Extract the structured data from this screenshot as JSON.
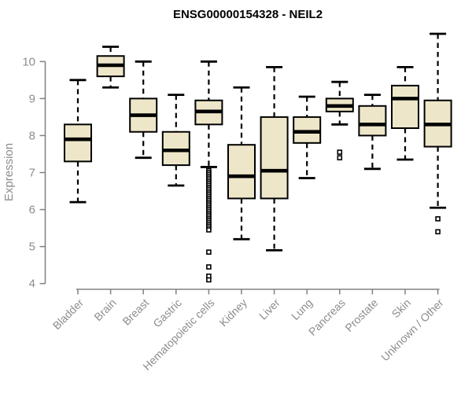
{
  "chart_data": {
    "type": "boxplot",
    "title": "ENSG00000154328 - NEIL2",
    "ylabel": "Expression",
    "xlabel": "",
    "ylim": [
      4,
      10
    ],
    "yticks": [
      4,
      5,
      6,
      7,
      8,
      9,
      10
    ],
    "grid": false,
    "legend": "none",
    "categories": [
      "Bladder",
      "Brain",
      "Breast",
      "Gastric",
      "Hematopoietic cells",
      "Kidney",
      "Liver",
      "Lung",
      "Pancreas",
      "Prostate",
      "Skin",
      "Unknown / Other"
    ],
    "series": [
      {
        "name": "Bladder",
        "whisker_low": 6.2,
        "q1": 7.3,
        "median": 7.9,
        "q3": 8.3,
        "whisker_high": 9.5,
        "outliers": []
      },
      {
        "name": "Brain",
        "whisker_low": 9.3,
        "q1": 9.6,
        "median": 9.9,
        "q3": 10.15,
        "whisker_high": 10.4,
        "outliers": []
      },
      {
        "name": "Breast",
        "whisker_low": 7.4,
        "q1": 8.1,
        "median": 8.55,
        "q3": 9.0,
        "whisker_high": 10.0,
        "outliers": []
      },
      {
        "name": "Gastric",
        "whisker_low": 6.65,
        "q1": 7.2,
        "median": 7.6,
        "q3": 8.1,
        "whisker_high": 9.1,
        "outliers": []
      },
      {
        "name": "Hematopoietic cells",
        "whisker_low": 7.15,
        "q1": 8.3,
        "median": 8.65,
        "q3": 8.95,
        "whisker_high": 10.0,
        "outliers": [
          7.05,
          7.0,
          6.95,
          6.9,
          6.85,
          6.8,
          6.75,
          6.7,
          6.65,
          6.6,
          6.55,
          6.5,
          6.45,
          6.4,
          6.35,
          6.3,
          6.25,
          6.2,
          6.15,
          6.1,
          6.05,
          6.0,
          5.95,
          5.9,
          5.85,
          5.8,
          5.75,
          5.7,
          5.65,
          5.6,
          5.55,
          5.5,
          5.45,
          4.85,
          4.45,
          4.2,
          4.1
        ]
      },
      {
        "name": "Kidney",
        "whisker_low": 5.2,
        "q1": 6.3,
        "median": 6.9,
        "q3": 7.75,
        "whisker_high": 9.3,
        "outliers": []
      },
      {
        "name": "Liver",
        "whisker_low": 4.9,
        "q1": 6.3,
        "median": 7.05,
        "q3": 8.5,
        "whisker_high": 9.85,
        "outliers": []
      },
      {
        "name": "Lung",
        "whisker_low": 6.85,
        "q1": 7.8,
        "median": 8.1,
        "q3": 8.5,
        "whisker_high": 9.05,
        "outliers": []
      },
      {
        "name": "Pancreas",
        "whisker_low": 8.3,
        "q1": 8.65,
        "median": 8.8,
        "q3": 9.0,
        "whisker_high": 9.45,
        "outliers": [
          7.55,
          7.4
        ]
      },
      {
        "name": "Prostate",
        "whisker_low": 7.1,
        "q1": 8.0,
        "median": 8.3,
        "q3": 8.8,
        "whisker_high": 9.1,
        "outliers": []
      },
      {
        "name": "Skin",
        "whisker_low": 7.35,
        "q1": 8.2,
        "median": 9.0,
        "q3": 9.35,
        "whisker_high": 9.85,
        "outliers": []
      },
      {
        "name": "Unknown / Other",
        "whisker_low": 6.05,
        "q1": 7.7,
        "median": 8.3,
        "q3": 8.95,
        "whisker_high": 10.75,
        "outliers": [
          5.75,
          5.4
        ]
      }
    ]
  },
  "colors": {
    "box_fill": "#EDE6C9",
    "box_border": "#000000",
    "median": "#000000",
    "whisker": "#000000",
    "axis": "#808080",
    "tick_label": "#8d8d8d",
    "title": "#000000",
    "background": "#ffffff"
  }
}
